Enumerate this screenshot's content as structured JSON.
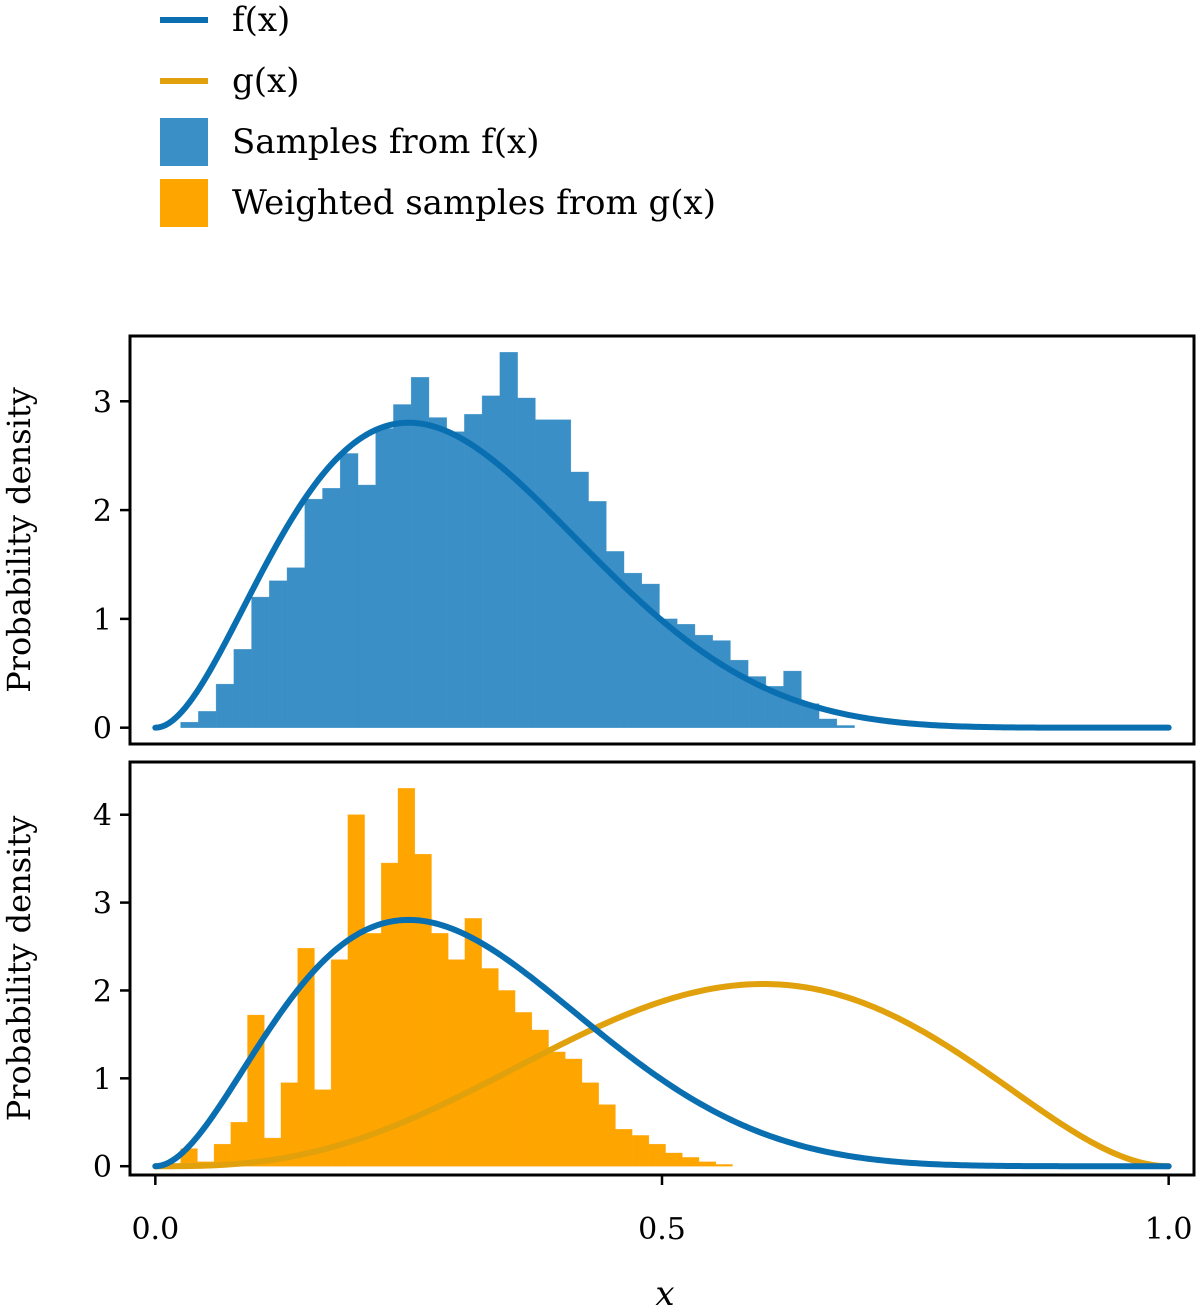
{
  "colors": {
    "f_line": "#0a6fb0",
    "g_line": "#e0a10d",
    "f_bars": "#3a8fc6",
    "g_bars": "#ffa500"
  },
  "legend": {
    "items": [
      {
        "label": "f(x)",
        "kind": "line",
        "color": "#0a6fb0"
      },
      {
        "label": "g(x)",
        "kind": "line",
        "color": "#e0a10d"
      },
      {
        "label": "Samples from f(x)",
        "kind": "patch",
        "color": "#3a8fc6"
      },
      {
        "label": "Weighted samples from g(x)",
        "kind": "patch",
        "color": "#ffa500"
      }
    ]
  },
  "chart_data": [
    {
      "type": "bar",
      "name": "top",
      "ylabel": "Probability density",
      "xlabel": "",
      "xlim": [
        -0.025,
        1.025
      ],
      "ylim": [
        -0.15,
        3.6
      ],
      "yticks": [
        0,
        1,
        2,
        3
      ],
      "xticks": [
        0.0,
        0.5,
        1.0
      ],
      "bin_start": 0.025,
      "bin_width": 0.0175,
      "histogram": {
        "name": "Samples from f(x)",
        "values": [
          0.05,
          0.15,
          0.4,
          0.72,
          1.2,
          1.35,
          1.47,
          2.1,
          2.2,
          2.52,
          2.23,
          2.75,
          2.97,
          3.22,
          2.85,
          2.72,
          2.88,
          3.05,
          3.45,
          3.03,
          2.83,
          2.83,
          2.35,
          2.08,
          1.62,
          1.42,
          1.32,
          1.0,
          0.95,
          0.85,
          0.8,
          0.62,
          0.47,
          0.38,
          0.52,
          0.22,
          0.08,
          0.02
        ],
        "color": "#3a8fc6"
      },
      "lines": [
        {
          "name": "f(x)",
          "distribution": "beta",
          "a": 3,
          "b": 7,
          "x_range": [
            0.0,
            1.0
          ],
          "color": "#0a6fb0"
        }
      ]
    },
    {
      "type": "bar",
      "name": "bottom",
      "ylabel": "Probability density",
      "xlabel": "x",
      "xlim": [
        -0.025,
        1.025
      ],
      "ylim": [
        -0.1,
        4.6
      ],
      "yticks": [
        0,
        1,
        2,
        3,
        4
      ],
      "xticks": [
        0.0,
        0.5,
        1.0
      ],
      "xtick_labels": [
        "0.0",
        "0.5",
        "1.0"
      ],
      "bin_start": 0.025,
      "bin_width": 0.0165,
      "histogram": {
        "name": "Weighted samples from g(x)",
        "values": [
          0.2,
          0.05,
          0.25,
          0.5,
          1.72,
          0.32,
          0.95,
          2.48,
          0.87,
          2.35,
          4.0,
          2.65,
          3.45,
          4.3,
          3.55,
          2.65,
          2.35,
          2.82,
          2.25,
          2.0,
          1.75,
          1.55,
          1.3,
          1.22,
          0.95,
          0.7,
          0.42,
          0.35,
          0.25,
          0.15,
          0.1,
          0.05,
          0.02
        ],
        "color": "#ffa500"
      },
      "lines": [
        {
          "name": "f(x)",
          "distribution": "beta",
          "a": 3,
          "b": 7,
          "x_range": [
            0.0,
            1.0
          ],
          "color": "#0a6fb0"
        },
        {
          "name": "g(x)",
          "distribution": "beta",
          "a": 4,
          "b": 3,
          "x_range": [
            0.0,
            1.0
          ],
          "color": "#e0a10d"
        }
      ]
    }
  ]
}
